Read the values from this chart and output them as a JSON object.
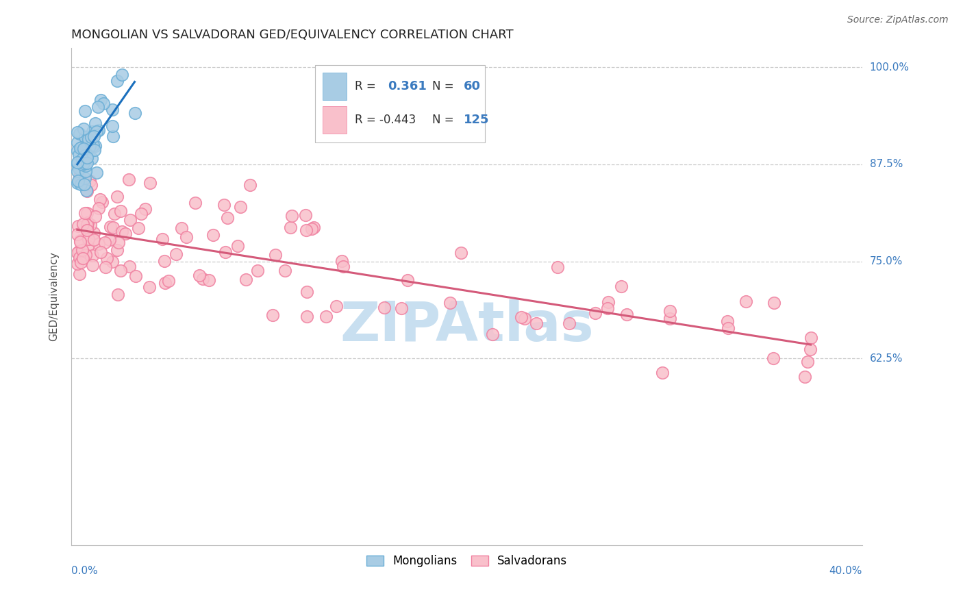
{
  "title": "MONGOLIAN VS SALVADORAN GED/EQUIVALENCY CORRELATION CHART",
  "source": "Source: ZipAtlas.com",
  "ylabel": "GED/Equivalency",
  "ylim": [
    0.385,
    1.025
  ],
  "xlim": [
    -0.002,
    0.405
  ],
  "mongolian_R": 0.361,
  "mongolian_N": 60,
  "salvadoran_R": -0.443,
  "salvadoran_N": 125,
  "mongolian_color": "#a8cce4",
  "mongolian_edge_color": "#6aaed6",
  "salvadoran_color": "#f9c0cb",
  "salvadoran_edge_color": "#f080a0",
  "mongolian_trend_color": "#1a6fbd",
  "salvadoran_trend_color": "#d45a7a",
  "watermark_color": "#c8dff0",
  "background_color": "#ffffff",
  "grid_color": "#cccccc",
  "title_fontsize": 13,
  "axis_label_fontsize": 11,
  "tick_fontsize": 11,
  "source_fontsize": 10,
  "ytick_values": [
    1.0,
    0.875,
    0.75,
    0.625
  ],
  "ytick_labels": [
    "100.0%",
    "87.5%",
    "75.0%",
    "62.5%"
  ],
  "xtick_left_label": "0.0%",
  "xtick_right_label": "40.0%"
}
